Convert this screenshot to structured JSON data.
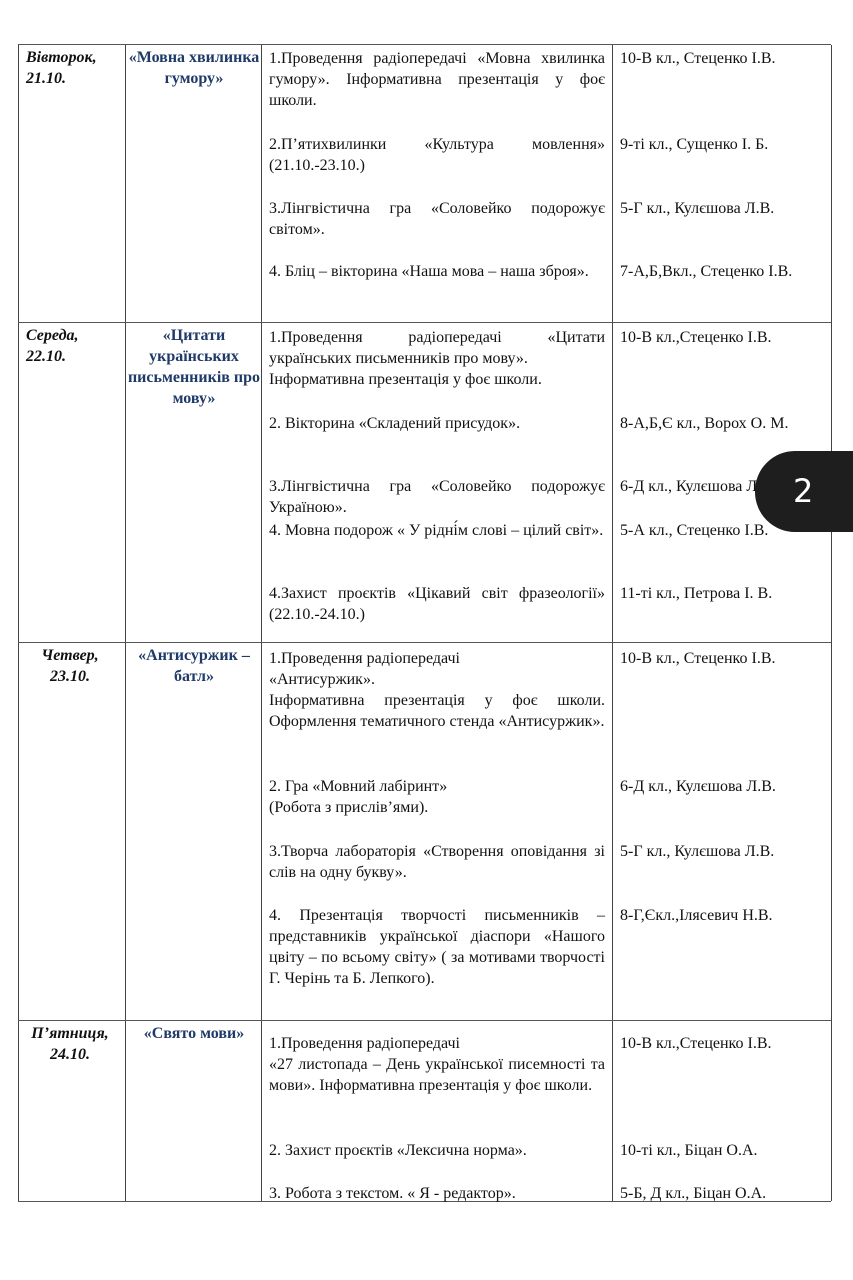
{
  "rows": [
    {
      "day": "Вівторок,\n21.10.",
      "theme": "«Мовна хвилинка гумору»",
      "items": [
        {
          "activity": "1.Проведення радіопередачі «Мовна хвилинка гумору». Інформативна презентація у фоє школи.",
          "responsible": "10-В кл., Стеценко І.В."
        },
        {
          "activity": "2.П’ятихвилинки «Культура мовлення» (21.10.-23.10.)",
          "responsible": "9-ті кл., Сущенко І. Б."
        },
        {
          "activity": "3.Лінгвістична гра «Соловейко подорожує світом».",
          "responsible": "5-Г кл., Кулєшова Л.В."
        },
        {
          "activity": "4. Бліц – вікторина «Наша мова – наша зброя».",
          "responsible": "7-А,Б,Вкл., Стеценко І.В."
        }
      ]
    },
    {
      "day": "Середа,\n22.10.",
      "theme": "«Цитати українських письменників про мову»",
      "items": [
        {
          "activity": "1.Проведення радіопередачі «Цитати українських письменників про мову».\nІнформативна презентація у фоє школи.",
          "responsible": "10-В кл.,Стеценко І.В."
        },
        {
          "activity": "2. Вікторина «Складений присудок».",
          "responsible": "8-А,Б,Є кл., Ворох О. М."
        },
        {
          "activity": "3.Лінгвістична гра «Соловейко подорожує Україною».",
          "responsible": "6-Д кл., Кулєшова Л.В."
        },
        {
          "activity": "4. Мовна подорож « У рідні́м слові – цілий світ».",
          "responsible": "5-А кл., Стеценко І.В."
        },
        {
          "activity": "4.Захист проєктів «Цікавий світ фразеології» (22.10.-24.10.)",
          "responsible": "11-ті кл., Петрова І. В."
        }
      ]
    },
    {
      "day": "Четвер,\n23.10.",
      "theme": "«Антисуржик – батл»",
      "items": [
        {
          "activity": "1.Проведення радіопередачі\n«Антисуржик».\nІнформативна презентація у фоє школи. Оформлення тематичного стенда «Антисуржик».",
          "responsible": "10-В кл., Стеценко І.В."
        },
        {
          "activity": "2. Гра «Мовний лабіринт»\n(Робота з прислів’ями).",
          "responsible": "6-Д кл., Кулєшова Л.В."
        },
        {
          "activity": "3.Творча лабораторія «Створення оповідання зі слів на одну букву».",
          "responsible": "5-Г кл., Кулєшова Л.В."
        },
        {
          "activity": "4. Презентація творчості письменників – представників української діаспори «Нашого цвіту – по всьому світу» ( за мотивами творчості Г. Черінь та Б. Лепкого).",
          "responsible": "8-Г,Єкл.,Ілясевич Н.В."
        }
      ]
    },
    {
      "day": "П’ятниця,\n24.10.",
      "theme": "«Свято мови»",
      "items": [
        {
          "activity": "1.Проведення радіопередачі\n«27 листопада – День української писемності та мови». Інформативна презентація у фоє школи.",
          "responsible": "10-В кл.,Стеценко І.В."
        },
        {
          "activity": " 2. Захист проєктів «Лексична норма».",
          "responsible": "10-ті кл., Біцан О.А."
        },
        {
          "activity": "3. Робота з текстом. « Я - редактор».",
          "responsible": "5-Б, Д кл., Біцан О.А."
        }
      ]
    }
  ],
  "page_indicator": "2",
  "colors": {
    "theme_text": "#1f3a68",
    "badge_bg": "#1e1e1e"
  }
}
